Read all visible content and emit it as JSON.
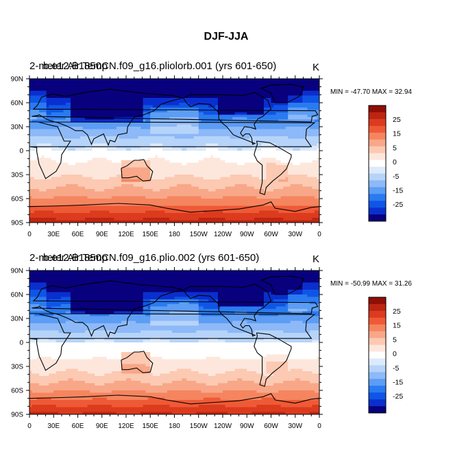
{
  "title": "DJF-JJA",
  "colormap": [
    "#08017e",
    "#0a2fcf",
    "#0f55e6",
    "#2a7af0",
    "#5c9df5",
    "#8db9f8",
    "#b6d4fa",
    "#dceafc",
    "#ffffff",
    "#fde7dc",
    "#fcc9b2",
    "#f8a788",
    "#f5855f",
    "#ef5a36",
    "#dc3b1e",
    "#bd2512",
    "#8f0e05"
  ],
  "chart_data": [
    {
      "type": "heatmap",
      "title_left": "2-meter Air Temp",
      "title_case": "b.e12.B1850CN.f09_g16.pliolorb.001  (yrs  601-650)",
      "units": "K",
      "stats": "MIN = -47.70 MAX =  32.94",
      "min": -47.7,
      "max": 32.94,
      "x_ticks": [
        "0",
        "30E",
        "60E",
        "90E",
        "120E",
        "150E",
        "180",
        "150W",
        "120W",
        "90W",
        "60W",
        "30W",
        "0"
      ],
      "y_ticks": [
        "90N",
        "60N",
        "30N",
        "0",
        "30S",
        "60S",
        "90S"
      ],
      "colorbar_labels": [
        "25",
        "15",
        "5",
        "0",
        "-5",
        "-15",
        "-25"
      ],
      "colorbar_values": [
        -35,
        -30,
        -25,
        -20,
        -15,
        -10,
        -5,
        -2.5,
        0,
        2.5,
        5,
        10,
        15,
        20,
        25,
        30,
        35
      ]
    },
    {
      "type": "heatmap",
      "title_left": "2-meter Air Temp",
      "title_case": "b.e12.B1850CN.f09_g16.plio.002  (yrs  601-650)",
      "units": "K",
      "stats": "MIN = -50.99 MAX =  31.26",
      "min": -50.99,
      "max": 31.26,
      "x_ticks": [
        "0",
        "30E",
        "60E",
        "90E",
        "120E",
        "150E",
        "180",
        "150W",
        "120W",
        "90W",
        "60W",
        "30W",
        "0"
      ],
      "y_ticks": [
        "90N",
        "60N",
        "30N",
        "0",
        "30S",
        "60S",
        "90S"
      ],
      "colorbar_labels": [
        "25",
        "15",
        "5",
        "0",
        "-5",
        "-15",
        "-25"
      ],
      "colorbar_values": [
        -35,
        -30,
        -25,
        -20,
        -15,
        -10,
        -5,
        -2.5,
        0,
        2.5,
        5,
        10,
        15,
        20,
        25,
        30,
        35
      ]
    }
  ]
}
